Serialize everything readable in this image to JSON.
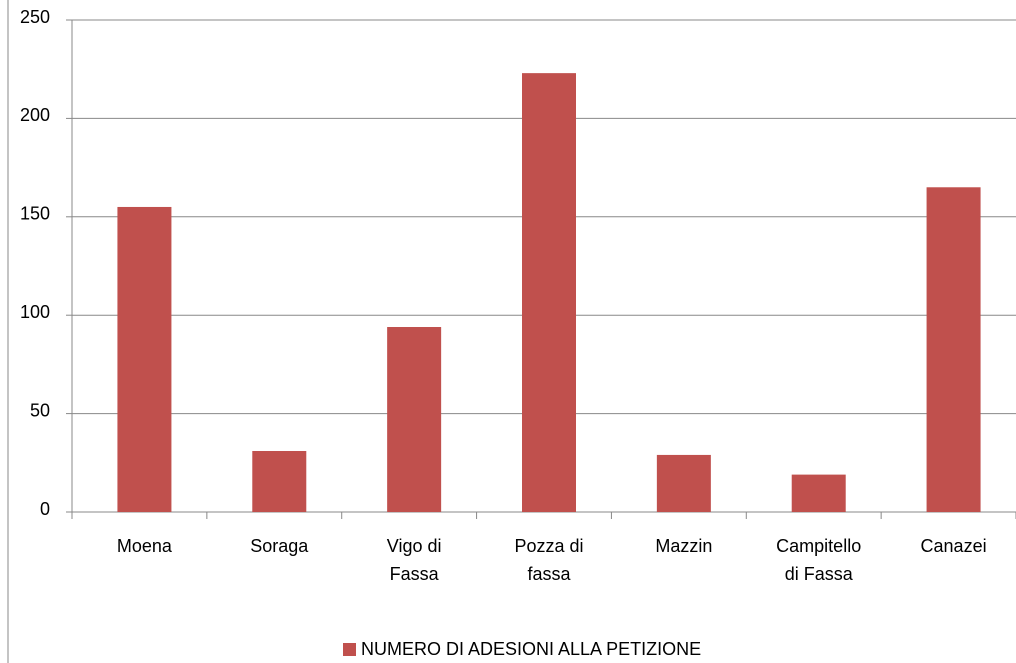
{
  "chart_data": {
    "type": "bar",
    "categories": [
      "Moena",
      "Soraga",
      "Vigo di Fassa",
      "Pozza di fassa",
      "Mazzin",
      "Campitello di Fassa",
      "Canazei"
    ],
    "series": [
      {
        "name": "NUMERO DI ADESIONI ALLA PETIZIONE",
        "color": "#c0504d",
        "values": [
          155,
          31,
          94,
          223,
          29,
          19,
          165
        ]
      }
    ],
    "ylim": [
      0,
      250
    ],
    "yticks": [
      0,
      50,
      100,
      150,
      200,
      250
    ],
    "grid": true,
    "legend": "bottom"
  }
}
